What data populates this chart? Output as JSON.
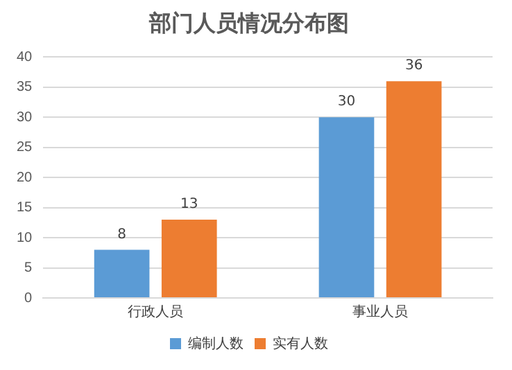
{
  "chart_data": {
    "type": "bar",
    "title": "部门人员情况分布图",
    "categories": [
      "行政人员",
      "事业人员"
    ],
    "series": [
      {
        "name": "编制人数",
        "color": "#5b9bd5",
        "values": [
          8,
          30
        ]
      },
      {
        "name": "实有人数",
        "color": "#ed7d31",
        "values": [
          13,
          36
        ]
      }
    ],
    "ylim": [
      0,
      40
    ],
    "yticks": [
      0,
      5,
      10,
      15,
      20,
      25,
      30,
      35,
      40
    ],
    "grid": "y",
    "legend": "bottom",
    "data_labels": true
  }
}
